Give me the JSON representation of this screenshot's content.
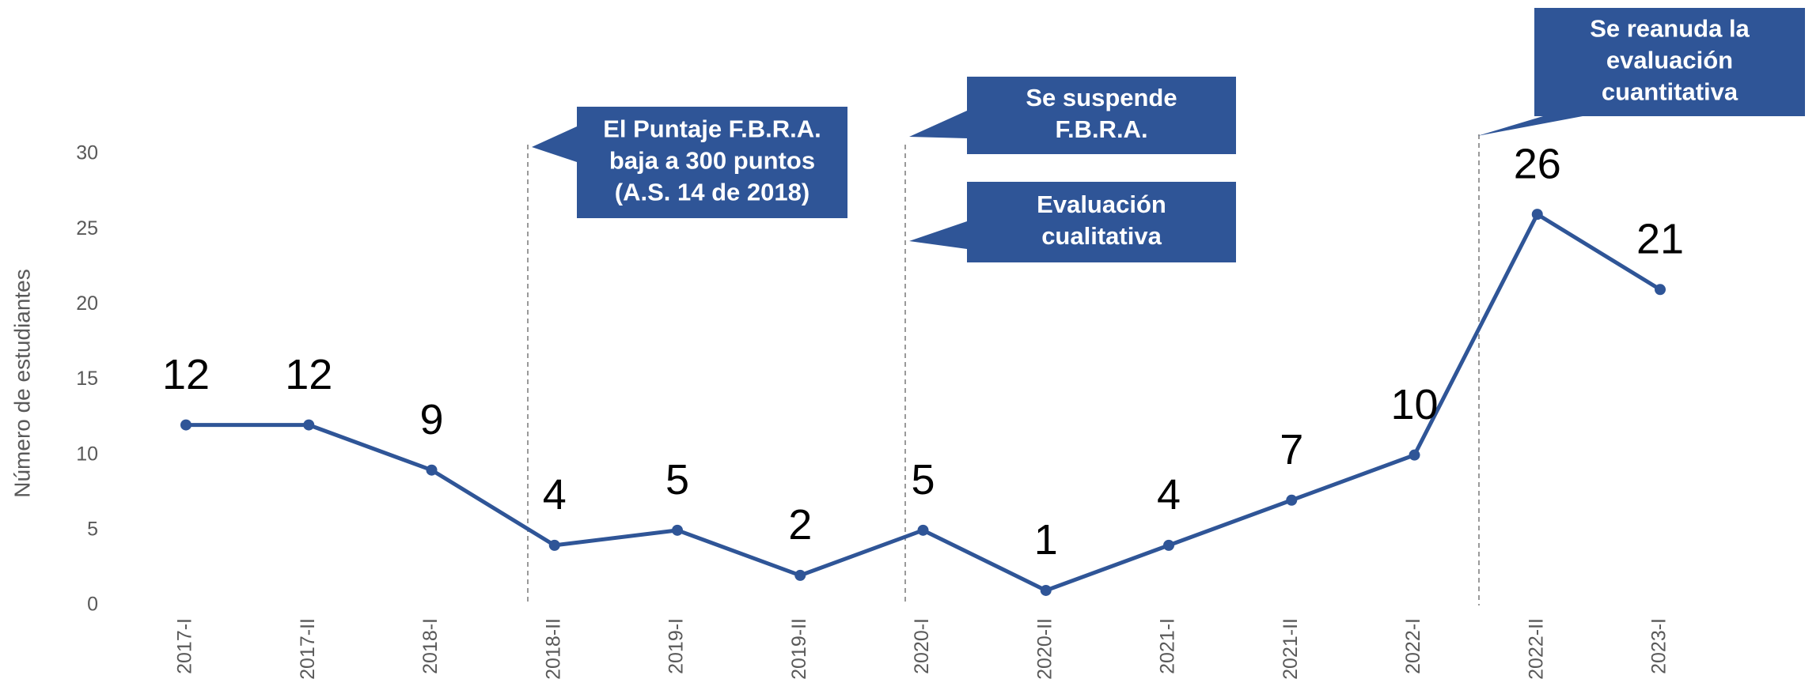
{
  "chart_data": {
    "type": "line",
    "y_label": "Número de estudiantes",
    "categories": [
      "2017-I",
      "2017-II",
      "2018-I",
      "2018-II",
      "2019-I",
      "2019-II",
      "2020-I",
      "2020-II",
      "2021-I",
      "2021-II",
      "2022-I",
      "2022-II",
      "2023-I"
    ],
    "values": [
      12,
      12,
      9,
      4,
      5,
      2,
      5,
      1,
      4,
      7,
      10,
      26,
      21
    ],
    "color": "#2f5597",
    "ylim": [
      0,
      30
    ],
    "yticks": [
      0,
      5,
      10,
      15,
      20,
      25,
      30
    ],
    "grid": false,
    "annotations": [
      {
        "lines": [
          "El Puntaje F.B.R.A.",
          "baja a 300 puntos",
          "(A.S. 14 de 2018)"
        ]
      },
      {
        "lines": [
          "Se suspende",
          "F.B.R.A."
        ]
      },
      {
        "lines": [
          "Evaluación",
          "cualitativa"
        ]
      },
      {
        "lines": [
          "Se reanuda la",
          "evaluación",
          "cuantitativa"
        ]
      }
    ]
  }
}
